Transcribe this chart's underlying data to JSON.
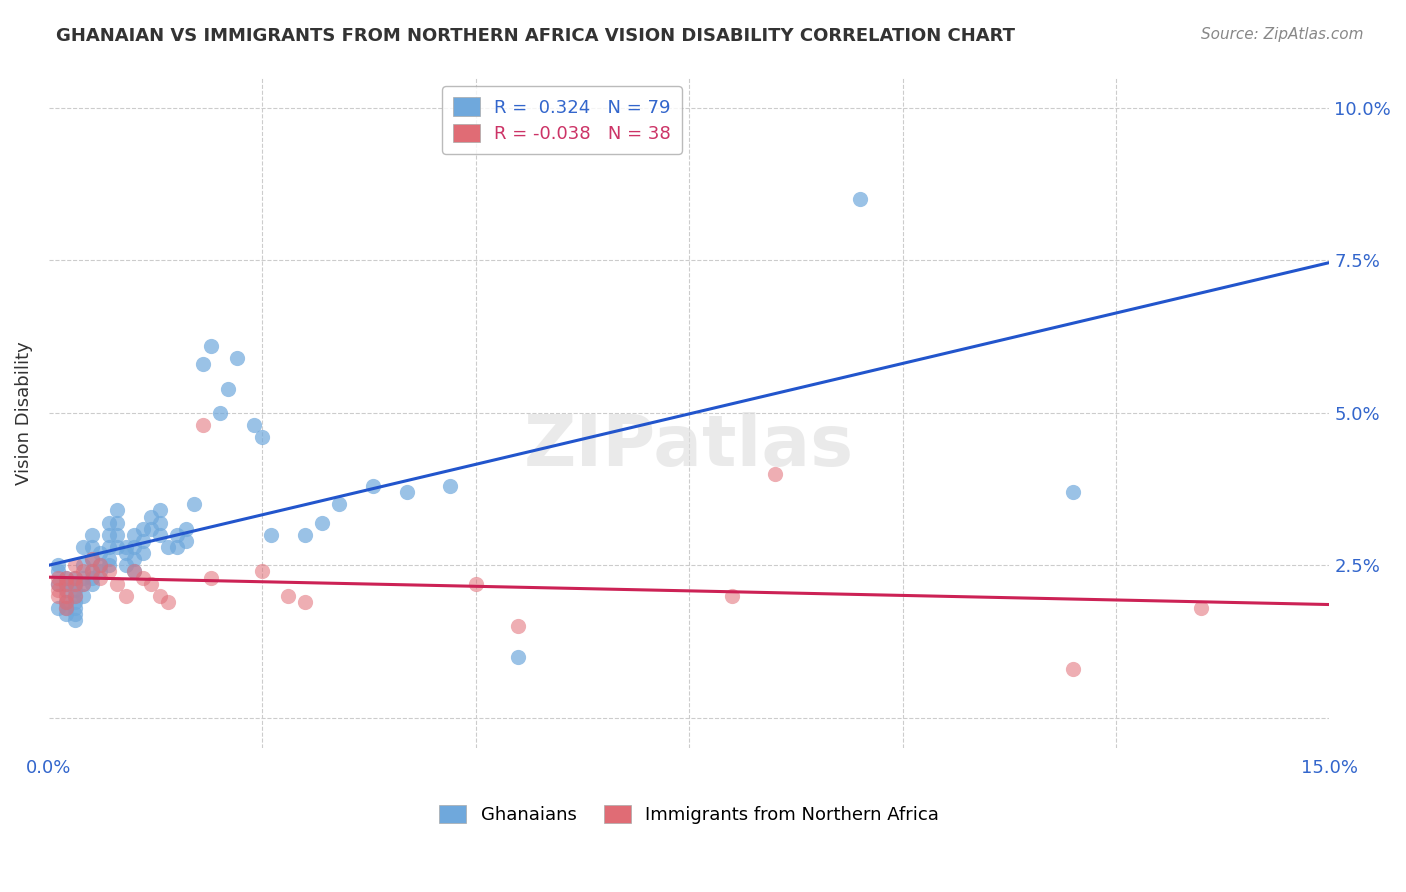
{
  "title": "GHANAIAN VS IMMIGRANTS FROM NORTHERN AFRICA VISION DISABILITY CORRELATION CHART",
  "source": "Source: ZipAtlas.com",
  "xlabel_label": "",
  "ylabel_label": "Vision Disability",
  "xlim": [
    0.0,
    0.15
  ],
  "ylim": [
    -0.005,
    0.105
  ],
  "xticks": [
    0.0,
    0.025,
    0.05,
    0.075,
    0.1,
    0.125,
    0.15
  ],
  "xticklabels": [
    "0.0%",
    "",
    "",
    "",
    "",
    "",
    "15.0%"
  ],
  "ytick_positions": [
    0.0,
    0.025,
    0.05,
    0.075,
    0.1
  ],
  "yticklabels_right": [
    "",
    "2.5%",
    "5.0%",
    "7.5%",
    "10.0%"
  ],
  "legend_entries": [
    {
      "label": "R =  0.324   N = 79",
      "color": "#6fa8dc"
    },
    {
      "label": "R = -0.038   N = 38",
      "color": "#ea9999"
    }
  ],
  "watermark": "ZIPatlas",
  "blue_color": "#6fa8dc",
  "pink_color": "#e06c75",
  "blue_line_color": "#2255cc",
  "pink_line_color": "#cc2255",
  "ghanaian_x": [
    0.001,
    0.001,
    0.001,
    0.001,
    0.002,
    0.002,
    0.002,
    0.002,
    0.002,
    0.002,
    0.003,
    0.003,
    0.003,
    0.003,
    0.003,
    0.003,
    0.003,
    0.003,
    0.004,
    0.004,
    0.004,
    0.004,
    0.004,
    0.005,
    0.005,
    0.005,
    0.005,
    0.005,
    0.005,
    0.006,
    0.006,
    0.006,
    0.007,
    0.007,
    0.007,
    0.007,
    0.007,
    0.008,
    0.008,
    0.008,
    0.008,
    0.009,
    0.009,
    0.009,
    0.01,
    0.01,
    0.01,
    0.01,
    0.011,
    0.011,
    0.011,
    0.012,
    0.012,
    0.013,
    0.013,
    0.013,
    0.014,
    0.015,
    0.015,
    0.016,
    0.016,
    0.017,
    0.018,
    0.019,
    0.02,
    0.021,
    0.022,
    0.024,
    0.025,
    0.026,
    0.03,
    0.032,
    0.034,
    0.038,
    0.042,
    0.047,
    0.055,
    0.095,
    0.12
  ],
  "ghanaian_y": [
    0.022,
    0.024,
    0.025,
    0.018,
    0.023,
    0.022,
    0.021,
    0.019,
    0.018,
    0.017,
    0.023,
    0.022,
    0.021,
    0.02,
    0.019,
    0.018,
    0.017,
    0.016,
    0.028,
    0.025,
    0.023,
    0.022,
    0.02,
    0.03,
    0.028,
    0.026,
    0.024,
    0.023,
    0.022,
    0.027,
    0.025,
    0.024,
    0.032,
    0.03,
    0.028,
    0.026,
    0.025,
    0.034,
    0.032,
    0.03,
    0.028,
    0.028,
    0.027,
    0.025,
    0.03,
    0.028,
    0.026,
    0.024,
    0.031,
    0.029,
    0.027,
    0.033,
    0.031,
    0.034,
    0.032,
    0.03,
    0.028,
    0.03,
    0.028,
    0.031,
    0.029,
    0.035,
    0.058,
    0.061,
    0.05,
    0.054,
    0.059,
    0.048,
    0.046,
    0.03,
    0.03,
    0.032,
    0.035,
    0.038,
    0.037,
    0.038,
    0.01,
    0.085,
    0.037
  ],
  "northern_africa_x": [
    0.001,
    0.001,
    0.001,
    0.001,
    0.002,
    0.002,
    0.002,
    0.002,
    0.002,
    0.003,
    0.003,
    0.003,
    0.003,
    0.004,
    0.004,
    0.005,
    0.005,
    0.006,
    0.006,
    0.007,
    0.008,
    0.009,
    0.01,
    0.011,
    0.012,
    0.013,
    0.014,
    0.018,
    0.019,
    0.025,
    0.028,
    0.03,
    0.05,
    0.055,
    0.08,
    0.085,
    0.12,
    0.135
  ],
  "northern_africa_y": [
    0.023,
    0.022,
    0.021,
    0.02,
    0.023,
    0.022,
    0.02,
    0.019,
    0.018,
    0.025,
    0.023,
    0.022,
    0.02,
    0.024,
    0.022,
    0.026,
    0.024,
    0.025,
    0.023,
    0.024,
    0.022,
    0.02,
    0.024,
    0.023,
    0.022,
    0.02,
    0.019,
    0.048,
    0.023,
    0.024,
    0.02,
    0.019,
    0.022,
    0.015,
    0.02,
    0.04,
    0.008,
    0.018
  ]
}
